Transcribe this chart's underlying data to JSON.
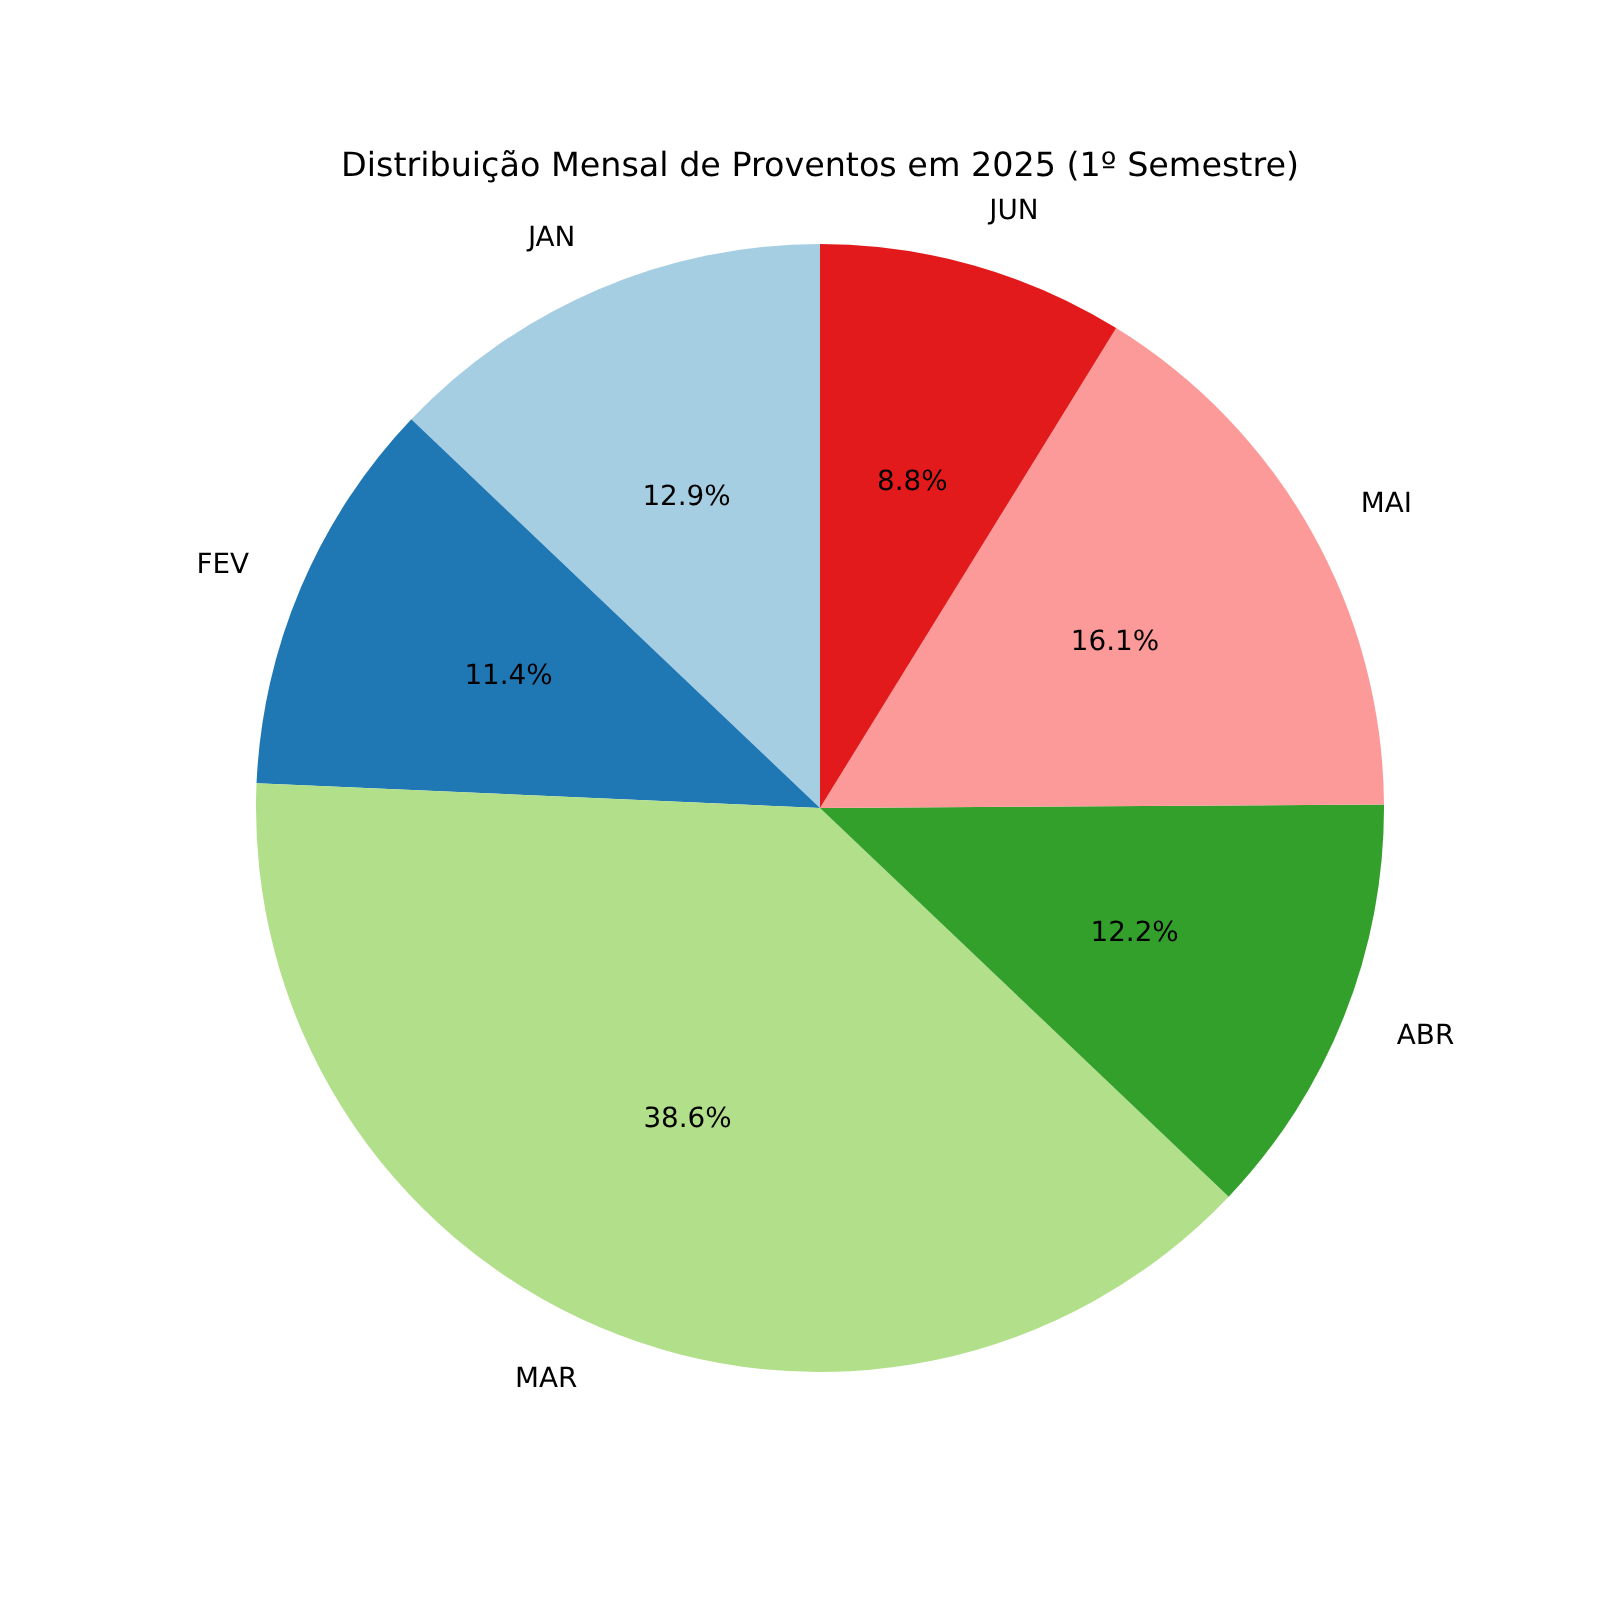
{
  "chart_data": {
    "type": "pie",
    "title": "Distribuição Mensal de Proventos em 2025 (1º Semestre)",
    "categories": [
      "JAN",
      "FEV",
      "MAR",
      "ABR",
      "MAI",
      "JUN"
    ],
    "values": [
      12.9,
      11.4,
      38.6,
      12.2,
      16.1,
      8.8
    ],
    "value_labels": [
      "12.9%",
      "11.4%",
      "38.6%",
      "12.2%",
      "16.1%",
      "8.8%"
    ],
    "colors": [
      "#a6cee3",
      "#1f78b4",
      "#b2df8a",
      "#33a02c",
      "#fb9a99",
      "#e31a1c"
    ]
  }
}
